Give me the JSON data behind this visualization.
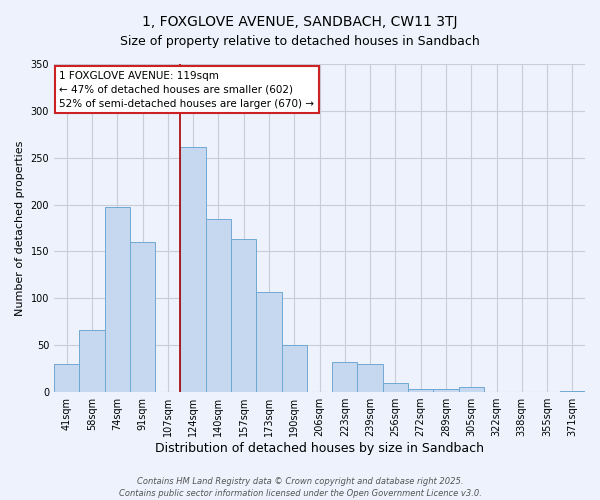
{
  "title": "1, FOXGLOVE AVENUE, SANDBACH, CW11 3TJ",
  "subtitle": "Size of property relative to detached houses in Sandbach",
  "xlabel": "Distribution of detached houses by size in Sandbach",
  "ylabel": "Number of detached properties",
  "bar_labels": [
    "41sqm",
    "58sqm",
    "74sqm",
    "91sqm",
    "107sqm",
    "124sqm",
    "140sqm",
    "157sqm",
    "173sqm",
    "190sqm",
    "206sqm",
    "223sqm",
    "239sqm",
    "256sqm",
    "272sqm",
    "289sqm",
    "305sqm",
    "322sqm",
    "338sqm",
    "355sqm",
    "371sqm"
  ],
  "bar_values": [
    30,
    66,
    197,
    160,
    0,
    261,
    185,
    163,
    107,
    50,
    0,
    32,
    30,
    10,
    3,
    3,
    5,
    0,
    0,
    0,
    1
  ],
  "bar_color": "#c5d8f0",
  "bar_edge_color": "#6fa8d4",
  "vline_color": "#aa0000",
  "vline_x_index": 4.5,
  "annotation_title": "1 FOXGLOVE AVENUE: 119sqm",
  "annotation_line1": "← 47% of detached houses are smaller (602)",
  "annotation_line2": "52% of semi-detached houses are larger (670) →",
  "annotation_box_color": "#ffffff",
  "annotation_box_edge": "#cc2222",
  "ylim": [
    0,
    350
  ],
  "yticks": [
    0,
    50,
    100,
    150,
    200,
    250,
    300,
    350
  ],
  "footer1": "Contains HM Land Registry data © Crown copyright and database right 2025.",
  "footer2": "Contains public sector information licensed under the Open Government Licence v3.0.",
  "bg_color": "#edf2fc",
  "grid_color": "#c8cdd8",
  "title_fontsize": 10,
  "subtitle_fontsize": 9,
  "xlabel_fontsize": 9,
  "ylabel_fontsize": 8,
  "tick_fontsize": 7,
  "footer_fontsize": 6
}
